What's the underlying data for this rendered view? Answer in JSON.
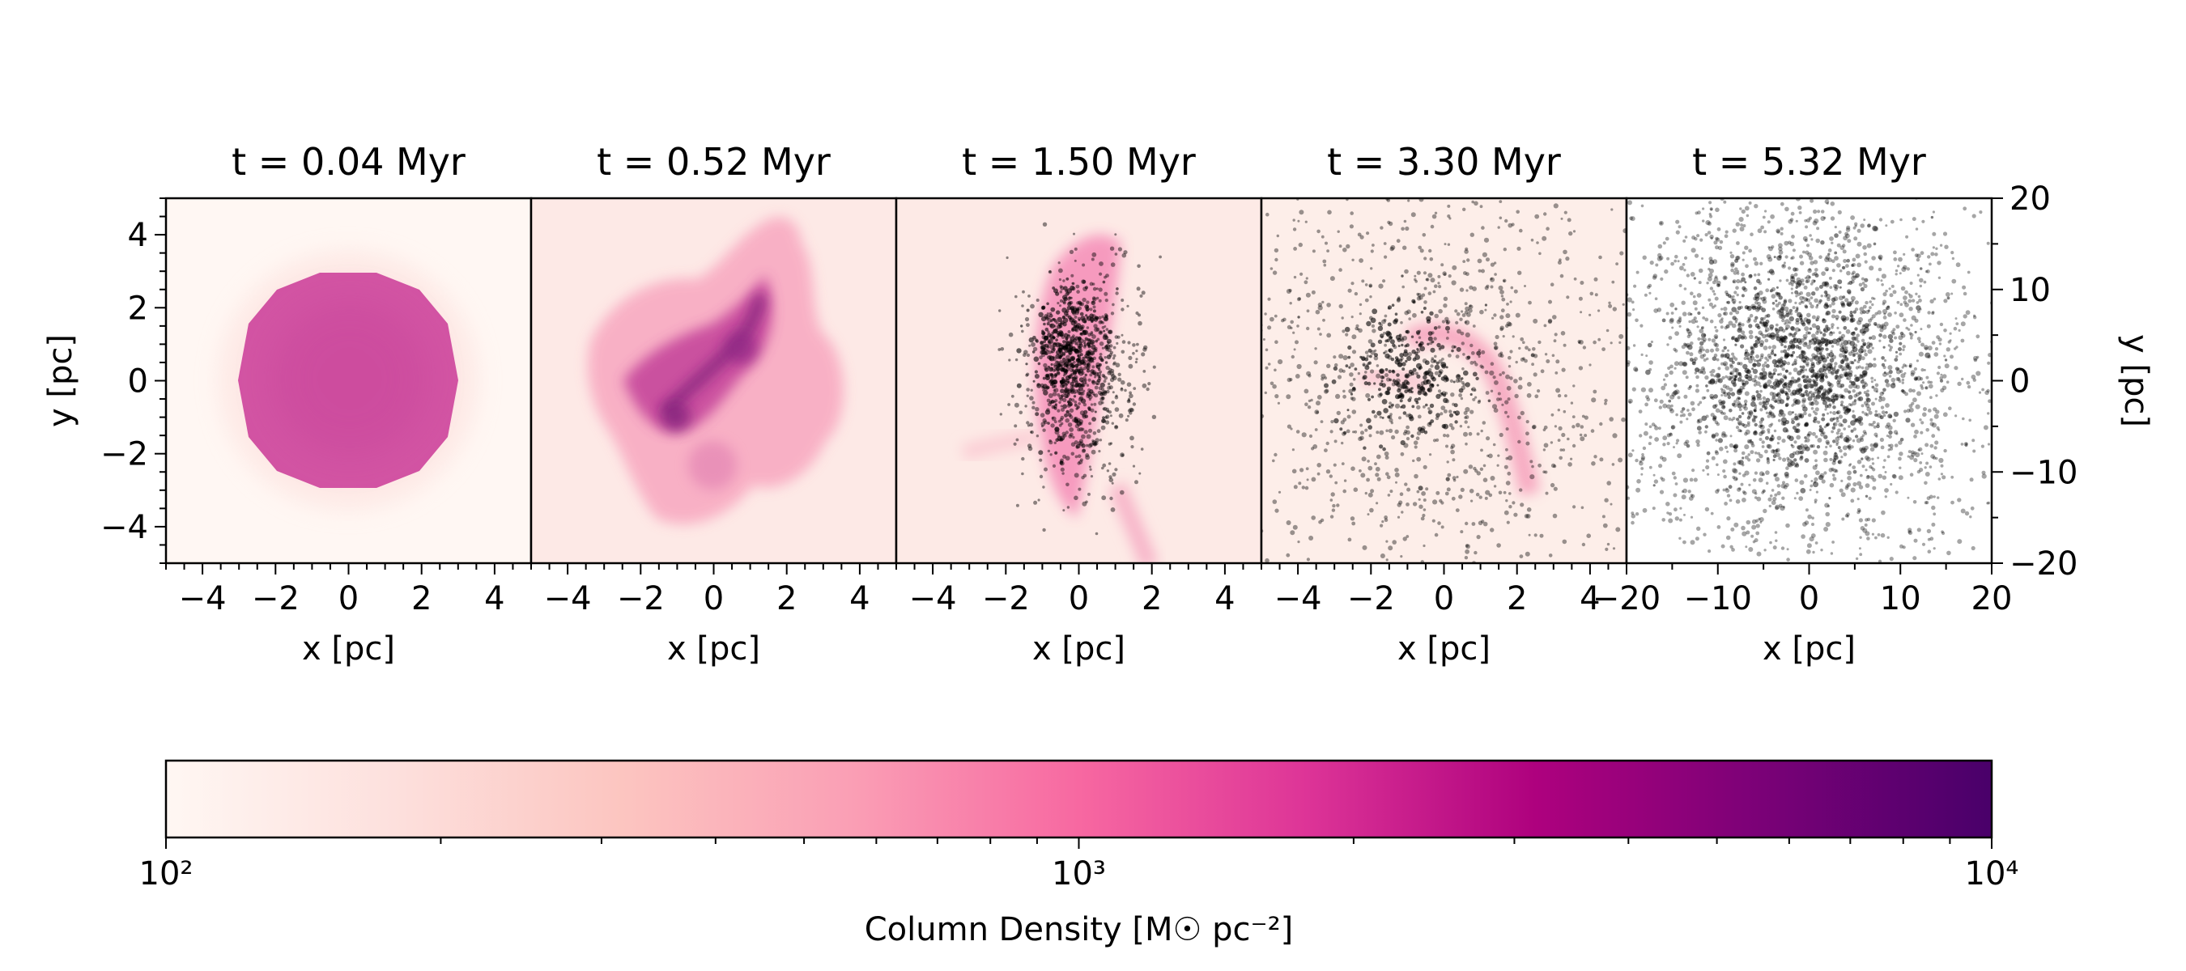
{
  "chart_data": [
    {
      "type": "heatmap",
      "title": "t = 0.04 Myr",
      "xlabel": "x [pc]",
      "ylabel": "y [pc]",
      "ylabel_side": "left",
      "xlim": [
        -5,
        5
      ],
      "ylim": [
        -5,
        5
      ],
      "xticks": [
        -4,
        -2,
        0,
        2,
        4
      ],
      "yticks": [
        -4,
        -2,
        0,
        2,
        4
      ],
      "xtick_labels": [
        "−4",
        "−2",
        "0",
        "2",
        "4"
      ],
      "ytick_labels": [
        "−4",
        "−2",
        "0",
        "2",
        "4"
      ],
      "gas": "uniform sphere, radius ~2.9 pc, column density ~1.5e3",
      "stars": "none"
    },
    {
      "type": "heatmap",
      "title": "t = 0.52 Myr",
      "xlabel": "x [pc]",
      "xlim": [
        -5,
        5
      ],
      "ylim": [
        -5,
        5
      ],
      "xticks": [
        -4,
        -2,
        0,
        2,
        4
      ],
      "xtick_labels": [
        "−4",
        "−2",
        "0",
        "2",
        "4"
      ],
      "gas": "turbulent filamentary cloud, peak ~5e3",
      "stars": "none"
    },
    {
      "type": "heatmap",
      "title": "t = 1.50 Myr",
      "xlabel": "x [pc]",
      "xlim": [
        -5,
        5
      ],
      "ylim": [
        -5,
        5
      ],
      "xticks": [
        -4,
        -2,
        0,
        2,
        4
      ],
      "xtick_labels": [
        "−4",
        "−2",
        "0",
        "2",
        "4"
      ],
      "gas": "elongated filament along y, ~1e3",
      "stars": "compact cluster centred near (0, 0)"
    },
    {
      "type": "heatmap",
      "title": "t = 3.30 Myr",
      "xlabel": "x [pc]",
      "xlim": [
        -5,
        5
      ],
      "ylim": [
        -5,
        5
      ],
      "xticks": [
        -4,
        -2,
        0,
        2,
        4
      ],
      "xtick_labels": [
        "−4",
        "−2",
        "0",
        "2",
        "4"
      ],
      "gas": "faint residual arcs",
      "stars": "expanding cluster filling the panel"
    },
    {
      "type": "scatter",
      "title": "t = 5.32 Myr",
      "xlabel": "x [pc]",
      "ylabel": "y [pc]",
      "ylabel_side": "right",
      "xlim": [
        -20,
        20
      ],
      "ylim": [
        -20,
        20
      ],
      "xticks": [
        -20,
        -10,
        0,
        10,
        20
      ],
      "yticks": [
        -20,
        -10,
        0,
        10,
        20
      ],
      "xtick_labels": [
        "−20",
        "−10",
        "0",
        "10",
        "20"
      ],
      "ytick_labels": [
        "−20",
        "−10",
        "0",
        "10",
        "20"
      ],
      "gas": "dispersed",
      "stars": "dispersed cluster, concentrated within ~10 pc"
    }
  ],
  "colorbar": {
    "label": "Column Density [M☉ pc⁻²]",
    "scale": "log",
    "range": [
      100,
      10000
    ],
    "ticks": [
      100,
      1000,
      10000
    ],
    "tick_labels": [
      "10²",
      "10³",
      "10⁴"
    ],
    "colors": [
      "#fff7f3",
      "#fde0dd",
      "#fcc5c0",
      "#fa9fb5",
      "#f768a1",
      "#dd3497",
      "#ae017e",
      "#7a0177",
      "#49006a"
    ]
  }
}
